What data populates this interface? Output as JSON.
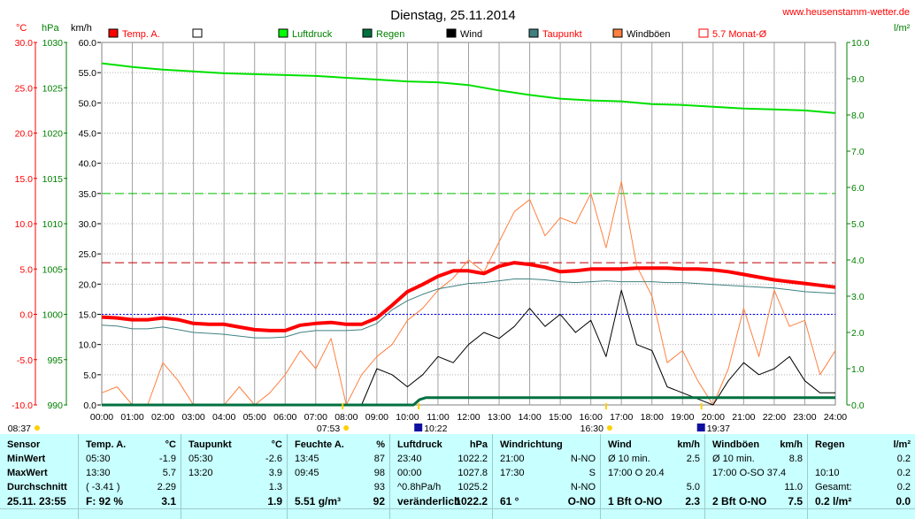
{
  "page": {
    "title": "Dienstag, 25.11.2014",
    "website": "www.heusenstamm-wetter.de",
    "axis_units": {
      "temp": "°C",
      "pressure": "hPa",
      "wind": "km/h",
      "rain": "l/m²"
    },
    "legend": [
      {
        "label": "Temp. A.",
        "color": "#ff0000",
        "style": "fill"
      },
      {
        "label": "",
        "color": "#ffffff",
        "style": "fill"
      },
      {
        "label": "Luftdruck",
        "color": "#00ff00",
        "style": "fill"
      },
      {
        "label": "Regen",
        "color": "#007040",
        "style": "fill"
      },
      {
        "label": "Wind",
        "color": "#000000",
        "style": "fill"
      },
      {
        "label": "Taupunkt",
        "color": "#408080",
        "style": "fill"
      },
      {
        "label": "Windböen",
        "color": "#ff8040",
        "style": "fill"
      },
      {
        "label": "5.7 Monat-Ø",
        "color": "#ff0000",
        "style": "outline"
      }
    ],
    "events": [
      {
        "time": "08:37",
        "hour": 0,
        "icon": "sun"
      },
      {
        "time": "07:53",
        "hour": 7.88,
        "icon": "sun"
      },
      {
        "time": "10:22",
        "hour": 10.37,
        "icon": "moon"
      },
      {
        "time": "16:30",
        "hour": 16.5,
        "icon": "sun"
      },
      {
        "time": "19:37",
        "hour": 19.62,
        "icon": "moon"
      }
    ]
  },
  "chart_data": {
    "type": "line",
    "x_unit": "hour",
    "xlim": [
      0,
      24
    ],
    "x_tick_labels": [
      "00:00",
      "01:00",
      "02:00",
      "03:00",
      "04:00",
      "05:00",
      "06:00",
      "07:00",
      "08:00",
      "09:00",
      "10:00",
      "11:00",
      "12:00",
      "13:00",
      "14:00",
      "15:00",
      "16:00",
      "17:00",
      "18:00",
      "19:00",
      "20:00",
      "21:00",
      "22:00",
      "23:00",
      "24:00"
    ],
    "axes": {
      "temp": {
        "range": [
          -10,
          30
        ],
        "ticks": [
          "-10.0",
          "-5.0",
          "0.0",
          "5.0",
          "10.0",
          "15.0",
          "20.0",
          "25.0",
          "30.0"
        ],
        "color": "#ff0000"
      },
      "pressure": {
        "range": [
          990,
          1030
        ],
        "ticks": [
          "990",
          "995",
          "1000",
          "1005",
          "1010",
          "1015",
          "1020",
          "1025",
          "1030"
        ],
        "color": "#008000"
      },
      "wind": {
        "range": [
          0,
          60
        ],
        "ticks": [
          "0.0",
          "5.0",
          "10.0",
          "15.0",
          "20.0",
          "25.0",
          "30.0",
          "35.0",
          "40.0",
          "45.0",
          "50.0",
          "55.0",
          "60.0"
        ],
        "color": "#000000"
      },
      "rain": {
        "range": [
          0,
          10
        ],
        "ticks": [
          "0.0",
          "1.0",
          "2.0",
          "3.0",
          "4.0",
          "5.0",
          "6.0",
          "7.0",
          "8.0",
          "9.0",
          "10.0"
        ],
        "color": "#008000"
      }
    },
    "reference_lines": [
      {
        "name": "5.7 Monat-Ø",
        "axis": "temp",
        "value": 5.7,
        "color": "#c00000"
      },
      {
        "axis": "temp",
        "value": 0,
        "color": "#0000ff"
      },
      {
        "axis": "wind",
        "value": 35,
        "color": "#00c000"
      }
    ],
    "series": [
      {
        "name": "Luftdruck",
        "axis": "pressure",
        "color": "#00e000",
        "width": 2,
        "x": [
          0,
          0.5,
          1,
          2,
          3,
          4,
          5,
          6,
          7,
          8,
          9,
          10,
          11,
          12,
          13,
          14,
          15,
          16,
          17,
          18,
          19,
          20,
          21,
          22,
          23,
          24
        ],
        "y": [
          1027.7,
          1027.5,
          1027.3,
          1027,
          1026.8,
          1026.6,
          1026.5,
          1026.4,
          1026.3,
          1026.1,
          1025.9,
          1025.7,
          1025.6,
          1025.3,
          1024.7,
          1024.2,
          1023.8,
          1023.6,
          1023.5,
          1023.2,
          1023.1,
          1022.9,
          1022.7,
          1022.6,
          1022.5,
          1022.2
        ]
      },
      {
        "name": "Temp. A.",
        "axis": "temp",
        "color": "#ff0000",
        "width": 4,
        "x": [
          0,
          0.5,
          1,
          1.5,
          2,
          2.5,
          3,
          3.5,
          4,
          4.5,
          5,
          5.5,
          6,
          6.5,
          7,
          7.5,
          8,
          8.5,
          9,
          9.5,
          10,
          10.5,
          11,
          11.5,
          12,
          12.5,
          13,
          13.5,
          14,
          14.5,
          15,
          15.5,
          16,
          16.5,
          17,
          17.5,
          18,
          18.5,
          19,
          19.5,
          20,
          20.5,
          21,
          21.5,
          22,
          22.5,
          23,
          23.5,
          24
        ],
        "y": [
          -0.3,
          -0.4,
          -0.6,
          -0.6,
          -0.4,
          -0.6,
          -1.0,
          -1.1,
          -1.1,
          -1.4,
          -1.7,
          -1.8,
          -1.8,
          -1.2,
          -1.0,
          -0.9,
          -1.1,
          -1.1,
          -0.4,
          1.0,
          2.5,
          3.3,
          4.2,
          4.8,
          4.8,
          4.5,
          5.3,
          5.7,
          5.5,
          5.2,
          4.7,
          4.8,
          5.0,
          5.0,
          5.0,
          5.1,
          5.1,
          5.1,
          5.0,
          5.0,
          4.9,
          4.7,
          4.4,
          4.1,
          3.8,
          3.6,
          3.4,
          3.2,
          3.0
        ]
      },
      {
        "name": "Taupunkt",
        "axis": "temp",
        "color": "#408080",
        "width": 1,
        "x": [
          0,
          0.5,
          1,
          1.5,
          2,
          2.5,
          3,
          3.5,
          4,
          4.5,
          5,
          5.5,
          6,
          6.5,
          7,
          7.5,
          8,
          8.5,
          9,
          9.5,
          10,
          10.5,
          11,
          11.5,
          12,
          12.5,
          13,
          13.5,
          14,
          14.5,
          15,
          15.5,
          16,
          16.5,
          17,
          17.5,
          18,
          18.5,
          19,
          19.5,
          20,
          20.5,
          21,
          21.5,
          22,
          22.5,
          23,
          23.5,
          24
        ],
        "y": [
          -1.2,
          -1.3,
          -1.6,
          -1.6,
          -1.4,
          -1.7,
          -2.0,
          -2.1,
          -2.2,
          -2.4,
          -2.6,
          -2.6,
          -2.5,
          -2.0,
          -1.8,
          -1.8,
          -1.8,
          -1.7,
          -1.0,
          0.5,
          1.5,
          2.2,
          2.8,
          3.1,
          3.4,
          3.5,
          3.7,
          3.9,
          3.9,
          3.8,
          3.6,
          3.5,
          3.6,
          3.7,
          3.6,
          3.6,
          3.6,
          3.5,
          3.5,
          3.4,
          3.3,
          3.2,
          3.1,
          3.0,
          2.9,
          2.7,
          2.5,
          2.4,
          2.3
        ]
      },
      {
        "name": "Windböen",
        "axis": "wind",
        "color": "#ff8040",
        "width": 1,
        "x": [
          0,
          0.5,
          1,
          1.5,
          2,
          2.5,
          3,
          3.5,
          4,
          4.5,
          5,
          5.5,
          6,
          6.5,
          7,
          7.5,
          8,
          8.5,
          9,
          9.5,
          10,
          10.5,
          11,
          11.5,
          12,
          12.5,
          13,
          13.5,
          14,
          14.5,
          15,
          15.5,
          16,
          16.5,
          17,
          17.5,
          18,
          18.5,
          19,
          19.5,
          20,
          20.5,
          21,
          21.5,
          22,
          22.5,
          23,
          23.5,
          24
        ],
        "y": [
          2,
          3,
          0,
          0,
          7,
          4,
          0,
          0,
          0,
          3,
          0,
          2,
          5,
          9,
          6,
          11,
          0,
          5,
          8,
          10,
          14,
          16,
          19,
          21,
          24,
          22,
          27,
          32,
          34,
          28,
          31,
          30,
          35,
          26,
          37,
          23,
          18,
          7,
          9,
          4,
          0,
          6,
          16,
          8,
          19,
          13,
          14,
          5,
          9
        ]
      },
      {
        "name": "Wind",
        "axis": "wind",
        "color": "#000000",
        "width": 1,
        "x": [
          0,
          0.5,
          1,
          1.5,
          2,
          2.5,
          3,
          3.5,
          4,
          4.5,
          5,
          5.5,
          6,
          6.5,
          7,
          7.5,
          8,
          8.5,
          9,
          9.5,
          10,
          10.5,
          11,
          11.5,
          12,
          12.5,
          13,
          13.5,
          14,
          14.5,
          15,
          15.5,
          16,
          16.5,
          17,
          17.5,
          18,
          18.5,
          19,
          19.5,
          20,
          20.5,
          21,
          21.5,
          22,
          22.5,
          23,
          23.5,
          24
        ],
        "y": [
          0,
          0,
          0,
          0,
          0,
          0,
          0,
          0,
          0,
          0,
          0,
          0,
          0,
          0,
          0,
          0,
          0,
          0,
          6,
          5,
          3,
          5,
          8,
          7,
          10,
          12,
          11,
          13,
          16,
          13,
          15,
          12,
          14,
          8,
          19,
          10,
          9,
          3,
          2,
          1,
          0,
          4,
          7,
          5,
          6,
          8,
          4,
          2,
          2
        ]
      },
      {
        "name": "Regen",
        "axis": "rain",
        "color": "#007040",
        "width": 3,
        "x": [
          0,
          10.2,
          10.4,
          10.6,
          11,
          24
        ],
        "y": [
          0,
          0,
          0.15,
          0.2,
          0.2,
          0.2
        ]
      }
    ]
  },
  "stats": {
    "sensor": {
      "header": "Sensor",
      "rows": [
        "MinWert",
        "MaxWert",
        "Durchschnitt"
      ],
      "footer": "25.11. 23:55"
    },
    "temp": {
      "header": "Temp. A.",
      "unit": "°C",
      "rows": [
        [
          "05:30",
          "-1.9"
        ],
        [
          "13:30",
          "5.7"
        ],
        [
          "( -3.41 )",
          "2.29"
        ]
      ],
      "footer": [
        "F: 92 %",
        "3.1"
      ]
    },
    "taupunkt": {
      "header": "Taupunkt",
      "unit": "°C",
      "rows": [
        [
          "05:30",
          "-2.6"
        ],
        [
          "13:20",
          "3.9"
        ],
        [
          "",
          "1.3"
        ]
      ],
      "footer": [
        "",
        "1.9"
      ]
    },
    "feuchte": {
      "header": "Feuchte A.",
      "unit": "%",
      "rows": [
        [
          "13:45",
          "87"
        ],
        [
          "09:45",
          "98"
        ],
        [
          "",
          "93"
        ]
      ],
      "footer": [
        "5.51 g/m³",
        "92"
      ]
    },
    "luftdruck": {
      "header": "Luftdruck",
      "unit": "hPa",
      "rows": [
        [
          "23:40",
          "1022.2"
        ],
        [
          "00:00",
          "1027.8"
        ],
        [
          "^0.8hPa/h",
          "1025.2"
        ]
      ],
      "footer": [
        "veränderlich",
        "1022.2"
      ]
    },
    "windrichtung": {
      "header": "Windrichtung",
      "unit": "",
      "rows": [
        [
          "21:00",
          "N-NO"
        ],
        [
          "17:30",
          "S"
        ],
        [
          "",
          "N-NO"
        ]
      ],
      "footer": [
        "61 °",
        "O-NO"
      ]
    },
    "wind": {
      "header": "Wind",
      "unit": "km/h",
      "rows": [
        [
          "Ø 10 min.",
          "2.5"
        ],
        [
          "17:00   O 20.4",
          ""
        ],
        [
          "",
          "5.0"
        ]
      ],
      "footer": [
        "1 Bft O-NO",
        "2.3"
      ]
    },
    "windboeen": {
      "header": "Windböen",
      "unit": "km/h",
      "rows": [
        [
          "Ø 10 min.",
          "8.8"
        ],
        [
          "17:00   O-SO 37.4",
          ""
        ],
        [
          "",
          "11.0"
        ]
      ],
      "footer": [
        "2 Bft O-NO",
        "7.5"
      ]
    },
    "regen": {
      "header": "Regen",
      "unit": "l/m²",
      "rows": [
        [
          "",
          "0.2"
        ],
        [
          "10:10",
          "0.2"
        ],
        [
          "Gesamt:",
          "0.2"
        ]
      ],
      "footer": [
        "0.2 l/m²",
        "0.0"
      ]
    }
  }
}
